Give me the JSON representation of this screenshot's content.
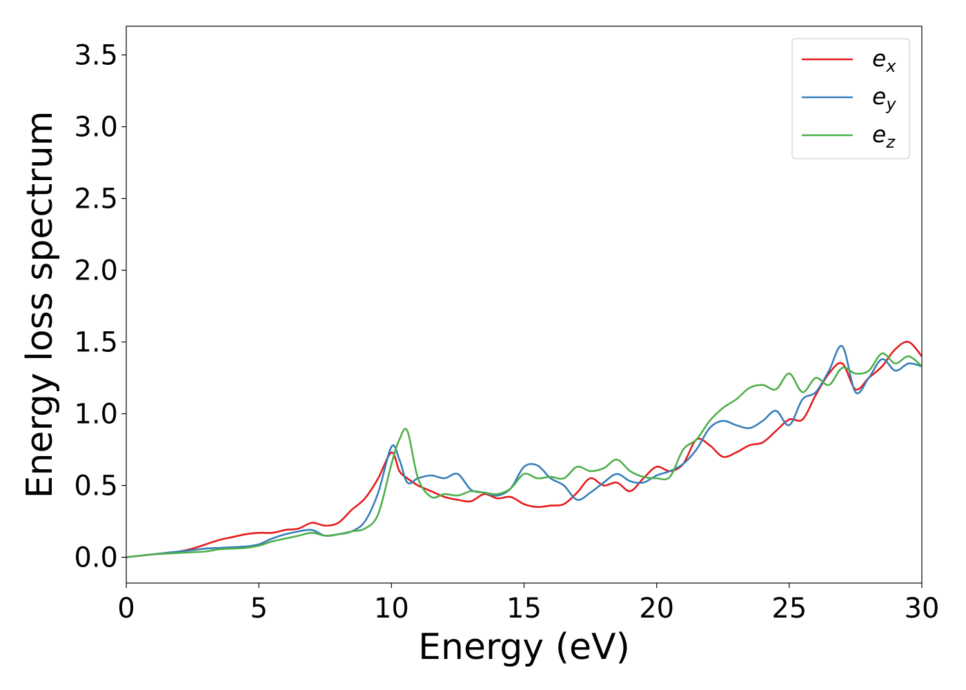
{
  "chart_data": {
    "type": "line",
    "xlabel": "Energy (eV)",
    "ylabel": "Energy loss spectrum",
    "xlim": [
      0,
      30
    ],
    "ylim": [
      -0.18,
      3.7
    ],
    "xticks": [
      0,
      5,
      10,
      15,
      20,
      25,
      30
    ],
    "yticks": [
      0.0,
      0.5,
      1.0,
      1.5,
      2.0,
      2.5,
      3.0,
      3.5
    ],
    "xtick_labels": [
      "0",
      "5",
      "10",
      "15",
      "20",
      "25",
      "30"
    ],
    "ytick_labels": [
      "0.0",
      "0.5",
      "1.0",
      "1.5",
      "2.0",
      "2.5",
      "3.0",
      "3.5"
    ],
    "grid": false,
    "legend_position": "top-right",
    "series": [
      {
        "name": "e",
        "subscript": "x",
        "color": "#e41a1c",
        "x": [
          0,
          0.5,
          1,
          1.5,
          2,
          2.5,
          3,
          3.5,
          4,
          4.5,
          5,
          5.5,
          6,
          6.5,
          7,
          7.5,
          8,
          8.5,
          9,
          9.5,
          10,
          10.3,
          10.6,
          11,
          11.5,
          12,
          12.5,
          13,
          13.5,
          14,
          14.5,
          15,
          15.5,
          16,
          16.5,
          17,
          17.5,
          18,
          18.5,
          19,
          19.5,
          20,
          20.5,
          21,
          21.5,
          22,
          22.5,
          23,
          23.5,
          24,
          24.5,
          25,
          25.5,
          26,
          26.5,
          27,
          27.5,
          28,
          28.5,
          29,
          29.5,
          30
        ],
        "y": [
          0.0,
          0.01,
          0.02,
          0.03,
          0.04,
          0.06,
          0.09,
          0.12,
          0.14,
          0.16,
          0.17,
          0.17,
          0.19,
          0.2,
          0.24,
          0.22,
          0.24,
          0.33,
          0.41,
          0.55,
          0.73,
          0.6,
          0.55,
          0.5,
          0.46,
          0.42,
          0.4,
          0.39,
          0.44,
          0.41,
          0.42,
          0.37,
          0.35,
          0.36,
          0.37,
          0.45,
          0.55,
          0.5,
          0.52,
          0.46,
          0.55,
          0.63,
          0.6,
          0.65,
          0.82,
          0.78,
          0.7,
          0.73,
          0.78,
          0.8,
          0.88,
          0.96,
          0.96,
          1.13,
          1.28,
          1.35,
          1.17,
          1.25,
          1.33,
          1.45,
          1.5,
          1.4
        ]
      },
      {
        "name": "e",
        "subscript": "y",
        "color": "#377eb8",
        "x": [
          0,
          0.5,
          1,
          1.5,
          2,
          2.5,
          3,
          3.5,
          4,
          4.5,
          5,
          5.5,
          6,
          6.5,
          7,
          7.5,
          8,
          8.5,
          9,
          9.5,
          10,
          10.3,
          10.6,
          11,
          11.5,
          12,
          12.5,
          13,
          13.5,
          14,
          14.5,
          15,
          15.5,
          16,
          16.5,
          17,
          17.5,
          18,
          18.5,
          19,
          19.5,
          20,
          20.5,
          21,
          21.5,
          22,
          22.5,
          23,
          23.5,
          24,
          24.5,
          25,
          25.5,
          26,
          26.5,
          27,
          27.5,
          28,
          28.5,
          29,
          29.5,
          30
        ],
        "y": [
          0.0,
          0.01,
          0.02,
          0.03,
          0.04,
          0.05,
          0.06,
          0.065,
          0.07,
          0.075,
          0.09,
          0.13,
          0.16,
          0.18,
          0.19,
          0.15,
          0.16,
          0.18,
          0.25,
          0.45,
          0.77,
          0.68,
          0.52,
          0.55,
          0.57,
          0.55,
          0.58,
          0.47,
          0.45,
          0.43,
          0.48,
          0.63,
          0.64,
          0.55,
          0.5,
          0.4,
          0.45,
          0.52,
          0.58,
          0.53,
          0.52,
          0.57,
          0.6,
          0.65,
          0.75,
          0.9,
          0.95,
          0.92,
          0.9,
          0.95,
          1.02,
          0.92,
          1.1,
          1.15,
          1.3,
          1.47,
          1.15,
          1.25,
          1.38,
          1.3,
          1.35,
          1.33
        ]
      },
      {
        "name": "e",
        "subscript": "z",
        "color": "#4daf4a",
        "x": [
          0,
          0.5,
          1,
          1.5,
          2,
          2.5,
          3,
          3.5,
          4,
          4.5,
          5,
          5.5,
          6,
          6.5,
          7,
          7.5,
          8,
          8.5,
          9,
          9.5,
          10,
          10.3,
          10.6,
          11,
          11.5,
          12,
          12.5,
          13,
          13.5,
          14,
          14.5,
          15,
          15.5,
          16,
          16.5,
          17,
          17.5,
          18,
          18.5,
          19,
          19.5,
          20,
          20.5,
          21,
          21.5,
          22,
          22.5,
          23,
          23.5,
          24,
          24.5,
          25,
          25.5,
          26,
          26.5,
          27,
          27.5,
          28,
          28.5,
          29,
          29.5,
          30
        ],
        "y": [
          0.0,
          0.01,
          0.02,
          0.025,
          0.03,
          0.035,
          0.04,
          0.055,
          0.06,
          0.065,
          0.08,
          0.11,
          0.13,
          0.15,
          0.17,
          0.15,
          0.16,
          0.18,
          0.2,
          0.3,
          0.65,
          0.82,
          0.88,
          0.55,
          0.42,
          0.44,
          0.43,
          0.46,
          0.45,
          0.44,
          0.48,
          0.58,
          0.55,
          0.56,
          0.55,
          0.63,
          0.6,
          0.62,
          0.68,
          0.6,
          0.56,
          0.55,
          0.56,
          0.75,
          0.82,
          0.95,
          1.04,
          1.1,
          1.18,
          1.2,
          1.17,
          1.28,
          1.15,
          1.25,
          1.2,
          1.32,
          1.28,
          1.3,
          1.42,
          1.35,
          1.4,
          1.33
        ]
      }
    ]
  }
}
